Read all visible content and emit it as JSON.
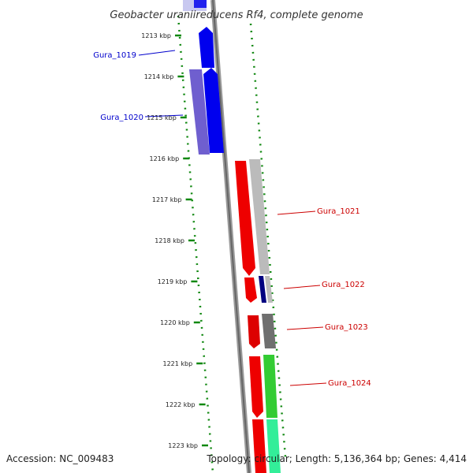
{
  "title": "Geobacter uraniireducens Rf4, complete genome",
  "footer": {
    "accession": "Accession: NC_009483",
    "summary": "Topology: circular; Length: 5,136,364 bp; Genes: 4,414"
  },
  "scale": {
    "ticks": [
      "1213 kbp",
      "1214 kbp",
      "1215 kbp",
      "1216 kbp",
      "1217 kbp",
      "1218 kbp",
      "1219 kbp",
      "1220 kbp",
      "1221 kbp",
      "1222 kbp",
      "1223 kbp"
    ]
  },
  "genes": {
    "left": [
      {
        "name": "Gura_1019",
        "strand": "-",
        "color": "#0000cc"
      },
      {
        "name": "Gura_1020",
        "strand": "-",
        "color": "#0000cc"
      }
    ],
    "right": [
      {
        "name": "Gura_1021",
        "strand": "+",
        "color": "#cc0000"
      },
      {
        "name": "Gura_1022",
        "strand": "+",
        "color": "#cc0000"
      },
      {
        "name": "Gura_1023",
        "strand": "+",
        "color": "#cc0000"
      },
      {
        "name": "Gura_1024",
        "strand": "+",
        "color": "#cc0000"
      }
    ]
  },
  "colors": {
    "backbone": "#777777",
    "dots": "#118811",
    "forward_gene": "#ff0000",
    "reverse_gene": "#0000ff",
    "reverse_cog": "#6f5fcf",
    "forward_cog_gray": "#bbbbbb",
    "forward_cog_green": "#33cc33",
    "forward_cog_teal": "#33ee99"
  }
}
